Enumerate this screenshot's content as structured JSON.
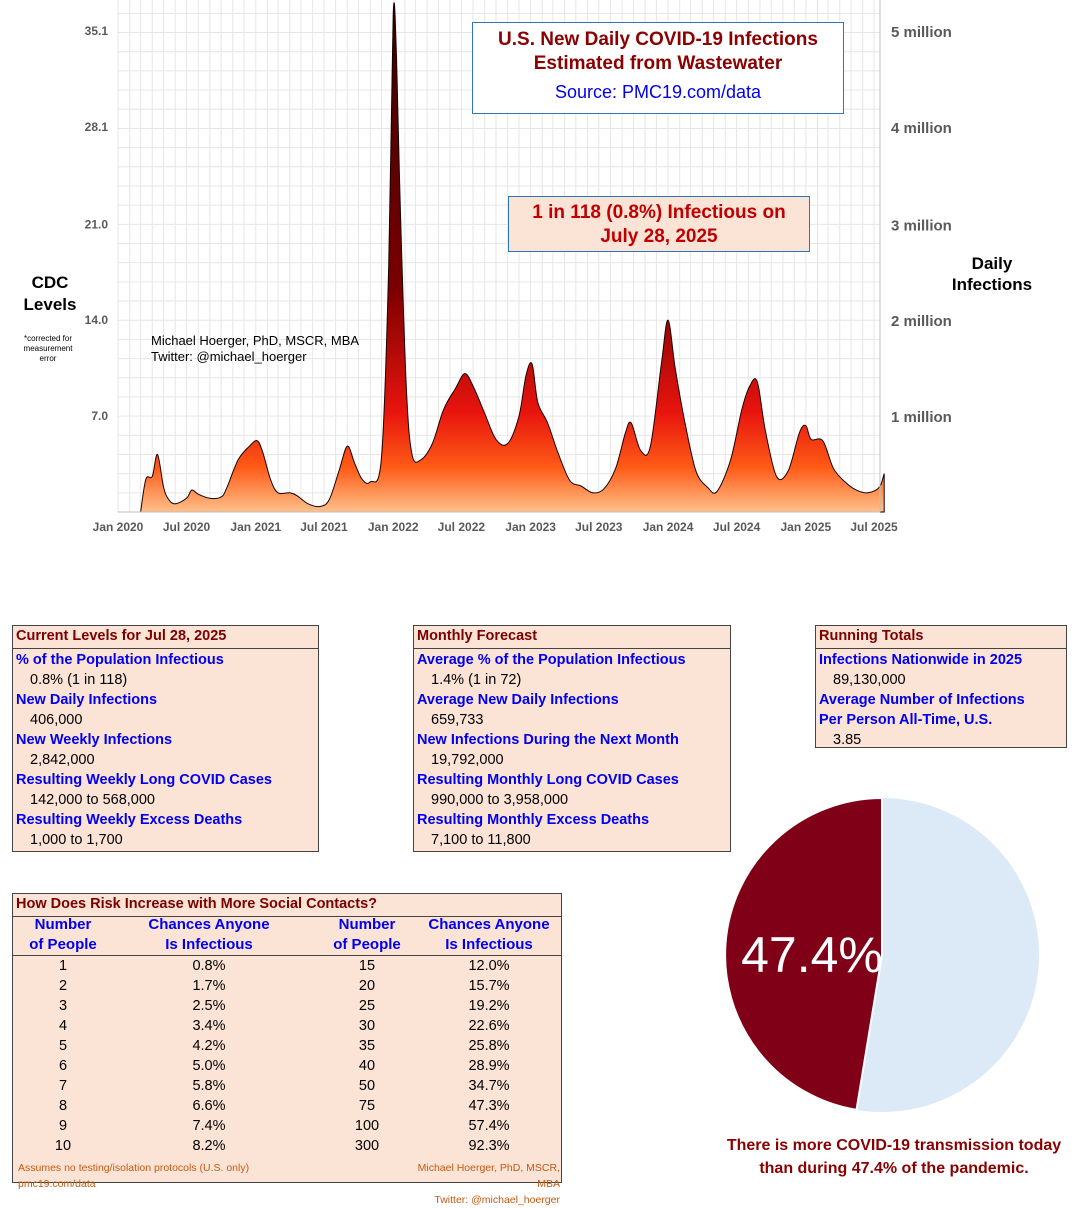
{
  "chart_title": [
    "U.S. New Daily COVID-19 Infections",
    "Estimated from Wastewater"
  ],
  "chart_source": "Source: PMC19.com/data",
  "infectious_callout": [
    "1 in 118 (0.8%) Infectious on",
    "July 28, 2025"
  ],
  "left_axis_title": [
    "CDC",
    "Levels"
  ],
  "left_axis_note": [
    "*corrected for",
    "measurement",
    "error"
  ],
  "right_axis_title": [
    "Daily",
    "Infections"
  ],
  "author_lines": [
    "Michael Hoerger, PhD, MSCR, MBA",
    "Twitter: @michael_hoerger"
  ],
  "chart_data": {
    "type": "area",
    "x_unit": "date",
    "left_axis": {
      "ticks": [
        7.0,
        14.0,
        21.0,
        28.1,
        35.1
      ],
      "tick_labels": [
        "7.0",
        "14.0",
        "21.0",
        "28.1",
        "35.1"
      ],
      "range": [
        0,
        36.5
      ]
    },
    "right_axis": {
      "ticks": [
        1000000,
        2000000,
        3000000,
        4000000,
        5000000
      ],
      "tick_labels": [
        "1 million",
        "2 million",
        "3 million",
        "4 million",
        "5 million"
      ]
    },
    "x_tick_labels": [
      "Jan 2020",
      "Jul 2020",
      "Jan 2021",
      "Jul 2021",
      "Jan 2022",
      "Jul 2022",
      "Jan 2023",
      "Jul 2023",
      "Jan 2024",
      "Jul 2024",
      "Jan 2025",
      "Jul 2025"
    ],
    "x_tick_dates": [
      "2020-01-01",
      "2020-07-01",
      "2021-01-01",
      "2021-07-01",
      "2022-01-01",
      "2022-07-01",
      "2023-01-01",
      "2023-07-01",
      "2024-01-01",
      "2024-07-01",
      "2025-01-01",
      "2025-07-01"
    ],
    "grid": true,
    "series": [
      {
        "points": [
          [
            "2020-03-01",
            0.0
          ],
          [
            "2020-03-15",
            2.4
          ],
          [
            "2020-04-01",
            2.6
          ],
          [
            "2020-04-15",
            4.2
          ],
          [
            "2020-05-01",
            1.8
          ],
          [
            "2020-05-15",
            0.9
          ],
          [
            "2020-06-01",
            0.6
          ],
          [
            "2020-07-01",
            1.0
          ],
          [
            "2020-07-15",
            1.6
          ],
          [
            "2020-08-01",
            1.3
          ],
          [
            "2020-09-01",
            1.0
          ],
          [
            "2020-10-01",
            1.1
          ],
          [
            "2020-10-15",
            1.7
          ],
          [
            "2020-11-15",
            3.8
          ],
          [
            "2020-12-15",
            4.8
          ],
          [
            "2021-01-05",
            5.2
          ],
          [
            "2021-01-20",
            4.3
          ],
          [
            "2021-02-10",
            2.3
          ],
          [
            "2021-03-01",
            1.4
          ],
          [
            "2021-04-01",
            1.4
          ],
          [
            "2021-04-20",
            1.2
          ],
          [
            "2021-05-20",
            0.6
          ],
          [
            "2021-06-20",
            0.4
          ],
          [
            "2021-07-15",
            0.9
          ],
          [
            "2021-08-10",
            3.0
          ],
          [
            "2021-09-01",
            4.8
          ],
          [
            "2021-09-20",
            3.6
          ],
          [
            "2021-10-10",
            2.4
          ],
          [
            "2021-11-01",
            2.2
          ],
          [
            "2021-12-01",
            4.0
          ],
          [
            "2021-12-20",
            18.0
          ],
          [
            "2022-01-01",
            36.3
          ],
          [
            "2022-01-10",
            33.0
          ],
          [
            "2022-01-20",
            22.0
          ],
          [
            "2022-02-05",
            9.0
          ],
          [
            "2022-02-20",
            4.2
          ],
          [
            "2022-03-15",
            3.8
          ],
          [
            "2022-04-15",
            5.0
          ],
          [
            "2022-05-15",
            7.5
          ],
          [
            "2022-06-15",
            9.0
          ],
          [
            "2022-07-10",
            10.1
          ],
          [
            "2022-08-01",
            9.2
          ],
          [
            "2022-09-01",
            7.2
          ],
          [
            "2022-10-01",
            5.3
          ],
          [
            "2022-11-01",
            5.0
          ],
          [
            "2022-12-01",
            7.0
          ],
          [
            "2022-12-20",
            10.0
          ],
          [
            "2023-01-05",
            10.8
          ],
          [
            "2023-01-20",
            8.0
          ],
          [
            "2023-02-15",
            6.5
          ],
          [
            "2023-03-15",
            4.3
          ],
          [
            "2023-04-15",
            2.3
          ],
          [
            "2023-05-15",
            1.9
          ],
          [
            "2023-06-15",
            1.4
          ],
          [
            "2023-07-15",
            1.7
          ],
          [
            "2023-08-15",
            3.2
          ],
          [
            "2023-09-10",
            5.8
          ],
          [
            "2023-09-25",
            6.5
          ],
          [
            "2023-10-20",
            4.5
          ],
          [
            "2023-11-15",
            4.8
          ],
          [
            "2023-12-15",
            11.0
          ],
          [
            "2024-01-01",
            14.0
          ],
          [
            "2024-01-20",
            10.5
          ],
          [
            "2024-02-15",
            6.5
          ],
          [
            "2024-03-15",
            3.0
          ],
          [
            "2024-04-15",
            1.8
          ],
          [
            "2024-05-10",
            1.5
          ],
          [
            "2024-06-15",
            3.8
          ],
          [
            "2024-07-15",
            7.5
          ],
          [
            "2024-08-05",
            9.2
          ],
          [
            "2024-08-25",
            9.5
          ],
          [
            "2024-09-15",
            6.0
          ],
          [
            "2024-10-15",
            2.6
          ],
          [
            "2024-11-15",
            3.0
          ],
          [
            "2024-12-15",
            5.8
          ],
          [
            "2025-01-01",
            6.3
          ],
          [
            "2025-01-15",
            5.3
          ],
          [
            "2025-02-15",
            5.2
          ],
          [
            "2025-03-15",
            3.2
          ],
          [
            "2025-04-15",
            2.2
          ],
          [
            "2025-05-15",
            1.6
          ],
          [
            "2025-06-15",
            1.4
          ],
          [
            "2025-07-15",
            1.8
          ],
          [
            "2025-07-28",
            2.8
          ]
        ],
        "colors": {
          "peak": "#3a0000",
          "mid": "#e8140e",
          "base": "#ffc08a"
        }
      }
    ]
  },
  "current_levels": {
    "title": "Current Levels for Jul 28, 2025",
    "rows": [
      {
        "label": "% of the Population Infectious",
        "value": "0.8% (1 in 118)"
      },
      {
        "label": "New Daily Infections",
        "value": "406,000"
      },
      {
        "label": "New Weekly Infections",
        "value": "2,842,000"
      },
      {
        "label": "Resulting Weekly Long COVID Cases",
        "value": "142,000 to 568,000"
      },
      {
        "label": "Resulting Weekly Excess Deaths",
        "value": "1,000 to 1,700"
      }
    ]
  },
  "monthly_forecast": {
    "title": "Monthly Forecast",
    "rows": [
      {
        "label": "Average % of the Population Infectious",
        "value": "1.4% (1 in 72)"
      },
      {
        "label": "Average New Daily Infections",
        "value": "659,733"
      },
      {
        "label": "New Infections During the Next Month",
        "value": "19,792,000"
      },
      {
        "label": "Resulting Monthly Long COVID Cases",
        "value": "990,000 to 3,958,000"
      },
      {
        "label": "Resulting Monthly Excess Deaths",
        "value": "7,100 to 11,800"
      }
    ]
  },
  "running_totals": {
    "title": "Running Totals",
    "label1": "Infections Nationwide in 2025",
    "value1": "89,130,000",
    "label2a": "Average Number of Infections",
    "label2b": "Per Person All-Time, U.S.",
    "value2": "3.85"
  },
  "risk_table": {
    "title": "How Does Risk Increase with More Social Contacts?",
    "col_people": [
      "Number",
      "of People"
    ],
    "col_chance": [
      "Chances Anyone",
      "Is Infectious"
    ],
    "left": [
      [
        "1",
        "0.8%"
      ],
      [
        "2",
        "1.7%"
      ],
      [
        "3",
        "2.5%"
      ],
      [
        "4",
        "3.4%"
      ],
      [
        "5",
        "4.2%"
      ],
      [
        "6",
        "5.0%"
      ],
      [
        "7",
        "5.8%"
      ],
      [
        "8",
        "6.6%"
      ],
      [
        "9",
        "7.4%"
      ],
      [
        "10",
        "8.2%"
      ]
    ],
    "right": [
      [
        "15",
        "12.0%"
      ],
      [
        "20",
        "15.7%"
      ],
      [
        "25",
        "19.2%"
      ],
      [
        "30",
        "22.6%"
      ],
      [
        "35",
        "25.8%"
      ],
      [
        "40",
        "28.9%"
      ],
      [
        "50",
        "34.7%"
      ],
      [
        "75",
        "47.3%"
      ],
      [
        "100",
        "57.4%"
      ],
      [
        "300",
        "92.3%"
      ]
    ]
  },
  "footnotes": {
    "left": [
      "Assumes no testing/isolation protocols (U.S. only)",
      "pmc19.com/data"
    ],
    "right": [
      "Michael Hoerger, PhD, MSCR, MBA",
      "Twitter: @michael_hoerger"
    ]
  },
  "pie": {
    "percent": 47.4,
    "label": "47.4%",
    "colors": {
      "highlight": "#800018",
      "rest": "#dce9f6"
    },
    "caption": [
      "There is more COVID-19 transmission today",
      "than during 47.4% of the pandemic."
    ]
  }
}
